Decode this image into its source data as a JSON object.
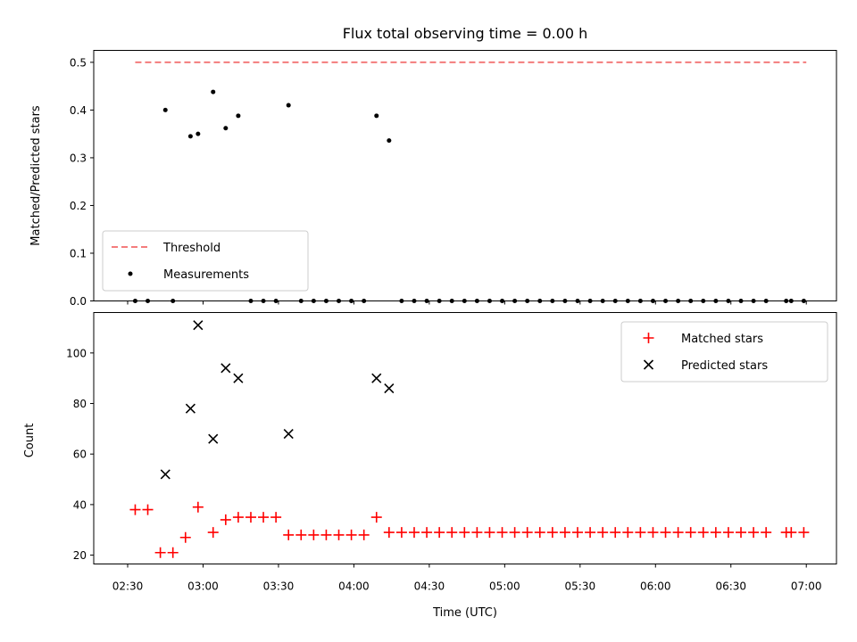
{
  "chart_data": {
    "type": "scatter",
    "title": "Flux total observing time = 0.00 h",
    "xlabel": "Time (UTC)",
    "xticks": [
      "02:30",
      "03:00",
      "03:30",
      "04:00",
      "04:30",
      "05:00",
      "05:30",
      "06:00",
      "06:30",
      "07:00"
    ],
    "top": {
      "ylabel": "Matched/Predicted stars",
      "ylim": [
        0,
        0.525
      ],
      "yticks": [
        "0.0",
        "0.1",
        "0.2",
        "0.3",
        "0.4",
        "0.5"
      ],
      "legend": [
        "Threshold",
        "Measurements"
      ],
      "legend_loc": "lower-left",
      "threshold": {
        "name": "Threshold",
        "color": "#f47c7c",
        "style": "dashed",
        "x": [
          "02:33",
          "07:00"
        ],
        "y": 0.5
      },
      "measurements": {
        "name": "Measurements",
        "color": "#000000",
        "x": [
          "02:33",
          "02:38",
          "02:45",
          "02:48",
          "02:55",
          "02:58",
          "03:04",
          "03:09",
          "03:14",
          "03:19",
          "03:24",
          "03:29",
          "03:34",
          "03:39",
          "03:44",
          "03:49",
          "03:54",
          "03:59",
          "04:04",
          "04:09",
          "04:14",
          "04:19",
          "04:24",
          "04:29",
          "04:34",
          "04:39",
          "04:44",
          "04:49",
          "04:54",
          "04:59",
          "05:04",
          "05:09",
          "05:14",
          "05:19",
          "05:24",
          "05:29",
          "05:34",
          "05:39",
          "05:44",
          "05:49",
          "05:54",
          "05:59",
          "06:04",
          "06:09",
          "06:14",
          "06:19",
          "06:24",
          "06:29",
          "06:34",
          "06:39",
          "06:44",
          "06:52",
          "06:54",
          "06:59"
        ],
        "y": [
          0,
          0,
          0.4,
          0,
          0.345,
          0.35,
          0.438,
          0.362,
          0.388,
          0,
          0,
          0,
          0.41,
          0,
          0,
          0,
          0,
          0,
          0,
          0.388,
          0.336,
          0,
          0,
          0,
          0,
          0,
          0,
          0,
          0,
          0,
          0,
          0,
          0,
          0,
          0,
          0,
          0,
          0,
          0,
          0,
          0,
          0,
          0,
          0,
          0,
          0,
          0,
          0,
          0,
          0,
          0,
          0,
          0,
          0
        ]
      }
    },
    "bottom": {
      "ylabel": "Count",
      "ylim": [
        16.5,
        116
      ],
      "yticks": [
        "20",
        "40",
        "60",
        "80",
        "100"
      ],
      "legend": [
        "Matched stars",
        "Predicted stars"
      ],
      "legend_loc": "upper-right",
      "series": [
        {
          "name": "Matched stars",
          "marker": "+",
          "color": "#ff0000",
          "x": [
            "02:33",
            "02:38",
            "02:43",
            "02:48",
            "02:53",
            "02:58",
            "03:04",
            "03:09",
            "03:14",
            "03:19",
            "03:24",
            "03:29",
            "03:34",
            "03:39",
            "03:44",
            "03:49",
            "03:54",
            "03:59",
            "04:04",
            "04:09",
            "04:14",
            "04:19",
            "04:24",
            "04:29",
            "04:34",
            "04:39",
            "04:44",
            "04:49",
            "04:54",
            "04:59",
            "05:04",
            "05:09",
            "05:14",
            "05:19",
            "05:24",
            "05:29",
            "05:34",
            "05:39",
            "05:44",
            "05:49",
            "05:54",
            "05:59",
            "06:04",
            "06:09",
            "06:14",
            "06:19",
            "06:24",
            "06:29",
            "06:34",
            "06:39",
            "06:44",
            "06:52",
            "06:54",
            "06:59"
          ],
          "y": [
            38,
            38,
            21,
            21,
            27,
            39,
            29,
            34,
            35,
            35,
            35,
            35,
            28,
            28,
            28,
            28,
            28,
            28,
            28,
            35,
            29,
            29,
            29,
            29,
            29,
            29,
            29,
            29,
            29,
            29,
            29,
            29,
            29,
            29,
            29,
            29,
            29,
            29,
            29,
            29,
            29,
            29,
            29,
            29,
            29,
            29,
            29,
            29,
            29,
            29,
            29,
            29,
            29,
            29
          ]
        },
        {
          "name": "Predicted stars",
          "marker": "x",
          "color": "#000000",
          "x": [
            "02:45",
            "02:55",
            "02:58",
            "03:04",
            "03:09",
            "03:14",
            "03:34",
            "04:09",
            "04:14"
          ],
          "y": [
            52,
            78,
            111,
            66,
            94,
            90,
            68,
            90,
            86
          ]
        }
      ]
    }
  }
}
